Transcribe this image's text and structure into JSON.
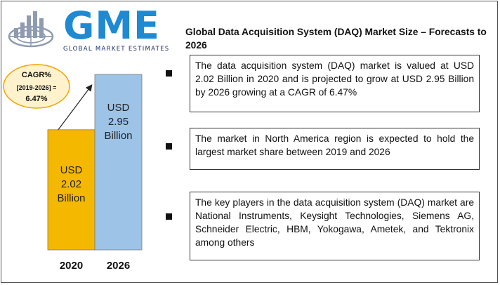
{
  "logo": {
    "letters": "GME",
    "tagline": "GLOBAL MARKET ESTIMATES"
  },
  "title": "Global Data Acquisition System (DAQ) Market Size – Forecasts to 2026",
  "cagr": {
    "line1": "CAGR%",
    "line2": "[2019-2026] =",
    "line3": "6.47%"
  },
  "chart_data": {
    "type": "bar",
    "categories": [
      "2020",
      "2026"
    ],
    "values": [
      2.02,
      2.95
    ],
    "value_labels": [
      [
        "USD",
        "2.02",
        "Billion"
      ],
      [
        "USD",
        "2.95",
        "Billion"
      ]
    ],
    "colors": [
      "#f5b800",
      "#9dc3e6"
    ],
    "title": "",
    "xlabel": "",
    "ylabel": ""
  },
  "facts": [
    "The data acquisition system (DAQ) market is valued at USD 2.02 Billion in 2020 and is projected to grow at USD 2.95 Billion by 2026 growing at a CAGR of 6.47%",
    "The market in North America region is expected to hold the largest market share  between 2019 and 2026",
    "The key players in the data acquisition system (DAQ) market are National Instruments, Keysight Technologies, Siemens AG, Schneider Electric, HBM, Yokogawa, Ametek, and Tektronix  among others"
  ],
  "colors": {
    "logo_blue": "#1f8ad2",
    "logo_dark": "#1a2f6b",
    "cagr_fill": "#fff2cc",
    "cagr_stroke": "#f0a500"
  }
}
